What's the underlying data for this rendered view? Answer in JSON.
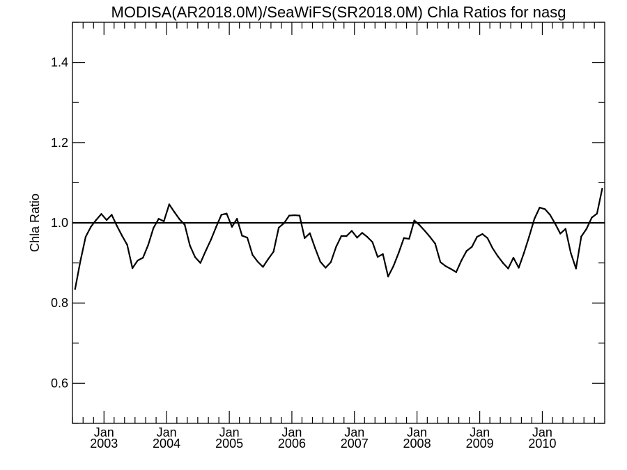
{
  "chart_data": {
    "type": "line",
    "title": "MODISA(AR2018.0M)/SeaWiFS(SR2018.0M)  Chla Ratios for nasg",
    "xlabel": "",
    "ylabel": "Chla Ratio",
    "ylim": [
      0.5,
      1.5
    ],
    "xlim": [
      "2002-07-01",
      "2010-12-31"
    ],
    "yticks": [
      0.6,
      0.8,
      1.0,
      1.2,
      1.4
    ],
    "ytick_labels": [
      "0.6",
      "0.8",
      "1.0",
      "1.2",
      "1.4"
    ],
    "xticks": [
      {
        "date": "2003-01-01",
        "month": "Jan",
        "year": "2003"
      },
      {
        "date": "2004-01-01",
        "month": "Jan",
        "year": "2004"
      },
      {
        "date": "2005-01-01",
        "month": "Jan",
        "year": "2005"
      },
      {
        "date": "2006-01-01",
        "month": "Jan",
        "year": "2006"
      },
      {
        "date": "2007-01-01",
        "month": "Jan",
        "year": "2007"
      },
      {
        "date": "2008-01-01",
        "month": "Jan",
        "year": "2008"
      },
      {
        "date": "2009-01-01",
        "month": "Jan",
        "year": "2009"
      },
      {
        "date": "2010-01-01",
        "month": "Jan",
        "year": "2010"
      }
    ],
    "reference_line": 1.0,
    "grid": false,
    "series": [
      {
        "x": [
          "2002-07",
          "2002-08",
          "2002-09",
          "2002-10",
          "2002-11",
          "2002-12",
          "2003-01",
          "2003-02",
          "2003-03",
          "2003-04",
          "2003-05",
          "2003-06",
          "2003-07",
          "2003-08",
          "2003-09",
          "2003-10",
          "2003-11",
          "2003-12",
          "2004-01",
          "2004-02",
          "2004-03",
          "2004-04",
          "2004-05",
          "2004-06",
          "2004-07",
          "2004-08",
          "2004-09",
          "2004-10",
          "2004-11",
          "2004-12",
          "2005-01",
          "2005-02",
          "2005-03",
          "2005-04",
          "2005-05",
          "2005-06",
          "2005-07",
          "2005-08",
          "2005-09",
          "2005-10",
          "2005-11",
          "2005-12",
          "2006-01",
          "2006-02",
          "2006-03",
          "2006-04",
          "2006-05",
          "2006-06",
          "2006-07",
          "2006-08",
          "2006-09",
          "2006-10",
          "2006-11",
          "2006-12",
          "2007-01",
          "2007-02",
          "2007-03",
          "2007-04",
          "2007-05",
          "2007-06",
          "2007-07",
          "2007-08",
          "2007-09",
          "2007-10",
          "2007-11",
          "2007-12",
          "2008-01",
          "2008-02",
          "2008-03",
          "2008-04",
          "2008-05",
          "2008-06",
          "2008-07",
          "2008-08",
          "2008-09",
          "2008-10",
          "2008-11",
          "2008-12",
          "2009-01",
          "2009-02",
          "2009-03",
          "2009-04",
          "2009-05",
          "2009-06",
          "2009-07",
          "2009-08",
          "2009-09",
          "2009-10",
          "2009-11",
          "2009-12",
          "2010-01",
          "2010-02",
          "2010-03",
          "2010-04",
          "2010-05",
          "2010-06",
          "2010-07",
          "2010-08",
          "2010-09",
          "2010-10",
          "2010-11",
          "2010-12"
        ],
        "values": [
          0.835,
          0.905,
          0.965,
          0.99,
          1.007,
          1.022,
          1.007,
          1.02,
          0.993,
          0.968,
          0.945,
          0.887,
          0.906,
          0.913,
          0.945,
          0.987,
          1.01,
          1.004,
          1.046,
          1.027,
          1.009,
          0.995,
          0.943,
          0.914,
          0.9,
          0.93,
          0.958,
          0.99,
          1.02,
          1.023,
          0.99,
          1.01,
          0.968,
          0.963,
          0.92,
          0.903,
          0.89,
          0.91,
          0.928,
          0.988,
          0.999,
          1.018,
          1.019,
          1.018,
          0.962,
          0.974,
          0.937,
          0.903,
          0.888,
          0.902,
          0.94,
          0.967,
          0.967,
          0.98,
          0.963,
          0.975,
          0.965,
          0.952,
          0.915,
          0.922,
          0.866,
          0.892,
          0.925,
          0.962,
          0.96,
          1.006,
          0.994,
          0.98,
          0.965,
          0.948,
          0.902,
          0.892,
          0.885,
          0.877,
          0.906,
          0.93,
          0.94,
          0.965,
          0.972,
          0.962,
          0.937,
          0.917,
          0.9,
          0.886,
          0.913,
          0.888,
          0.925,
          0.966,
          1.01,
          1.038,
          1.034,
          1.02,
          0.998,
          0.973,
          0.985,
          0.925,
          0.886,
          0.966,
          0.985,
          1.013,
          1.023,
          1.085
        ]
      }
    ]
  }
}
